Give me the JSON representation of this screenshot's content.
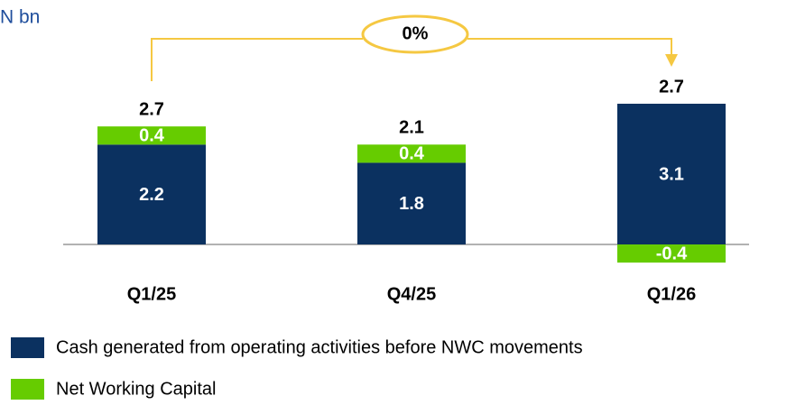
{
  "chart_data": {
    "type": "stacked-bar",
    "title": "N bn",
    "annotation": "0%",
    "categories": [
      "Q1/25",
      "Q4/25",
      "Q1/26"
    ],
    "series": [
      {
        "name": "Cash generated from operating activities before NWC movements",
        "color": "#0b3160",
        "values": [
          2.2,
          1.8,
          3.1
        ]
      },
      {
        "name": "Net Working Capital",
        "color": "#66cc00",
        "values": [
          0.4,
          0.4,
          -0.4
        ]
      }
    ],
    "totals": [
      2.7,
      2.1,
      2.7
    ]
  }
}
